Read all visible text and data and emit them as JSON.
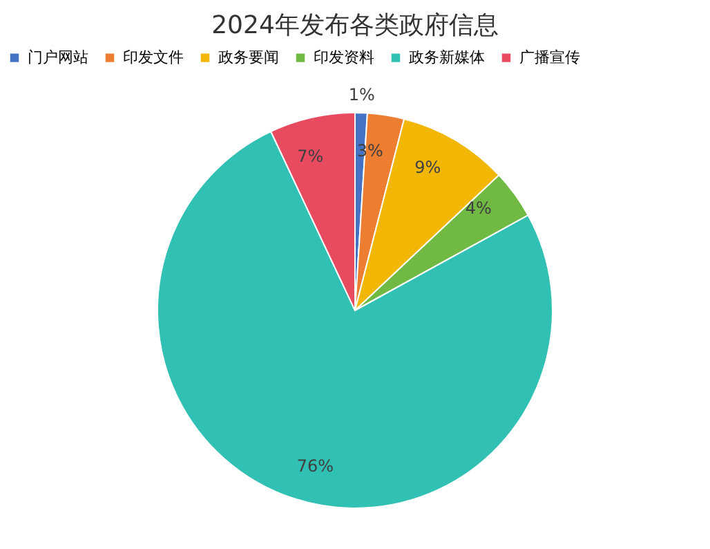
{
  "chart_data": {
    "type": "pie",
    "title": "2024年发布各类政府信息",
    "categories": [
      "门户网站",
      "印发文件",
      "政务要闻",
      "印发资料",
      "政务新媒体",
      "广播宣传"
    ],
    "values": [
      1,
      3,
      9,
      4,
      76,
      7
    ],
    "colors": [
      "#4472c4",
      "#ed7d31",
      "#f2b705",
      "#70b943",
      "#31c0b4",
      "#e84a5f"
    ],
    "value_labels": [
      "1%",
      "3%",
      "9%",
      "4%",
      "76%",
      "7%"
    ],
    "legend": "top"
  }
}
